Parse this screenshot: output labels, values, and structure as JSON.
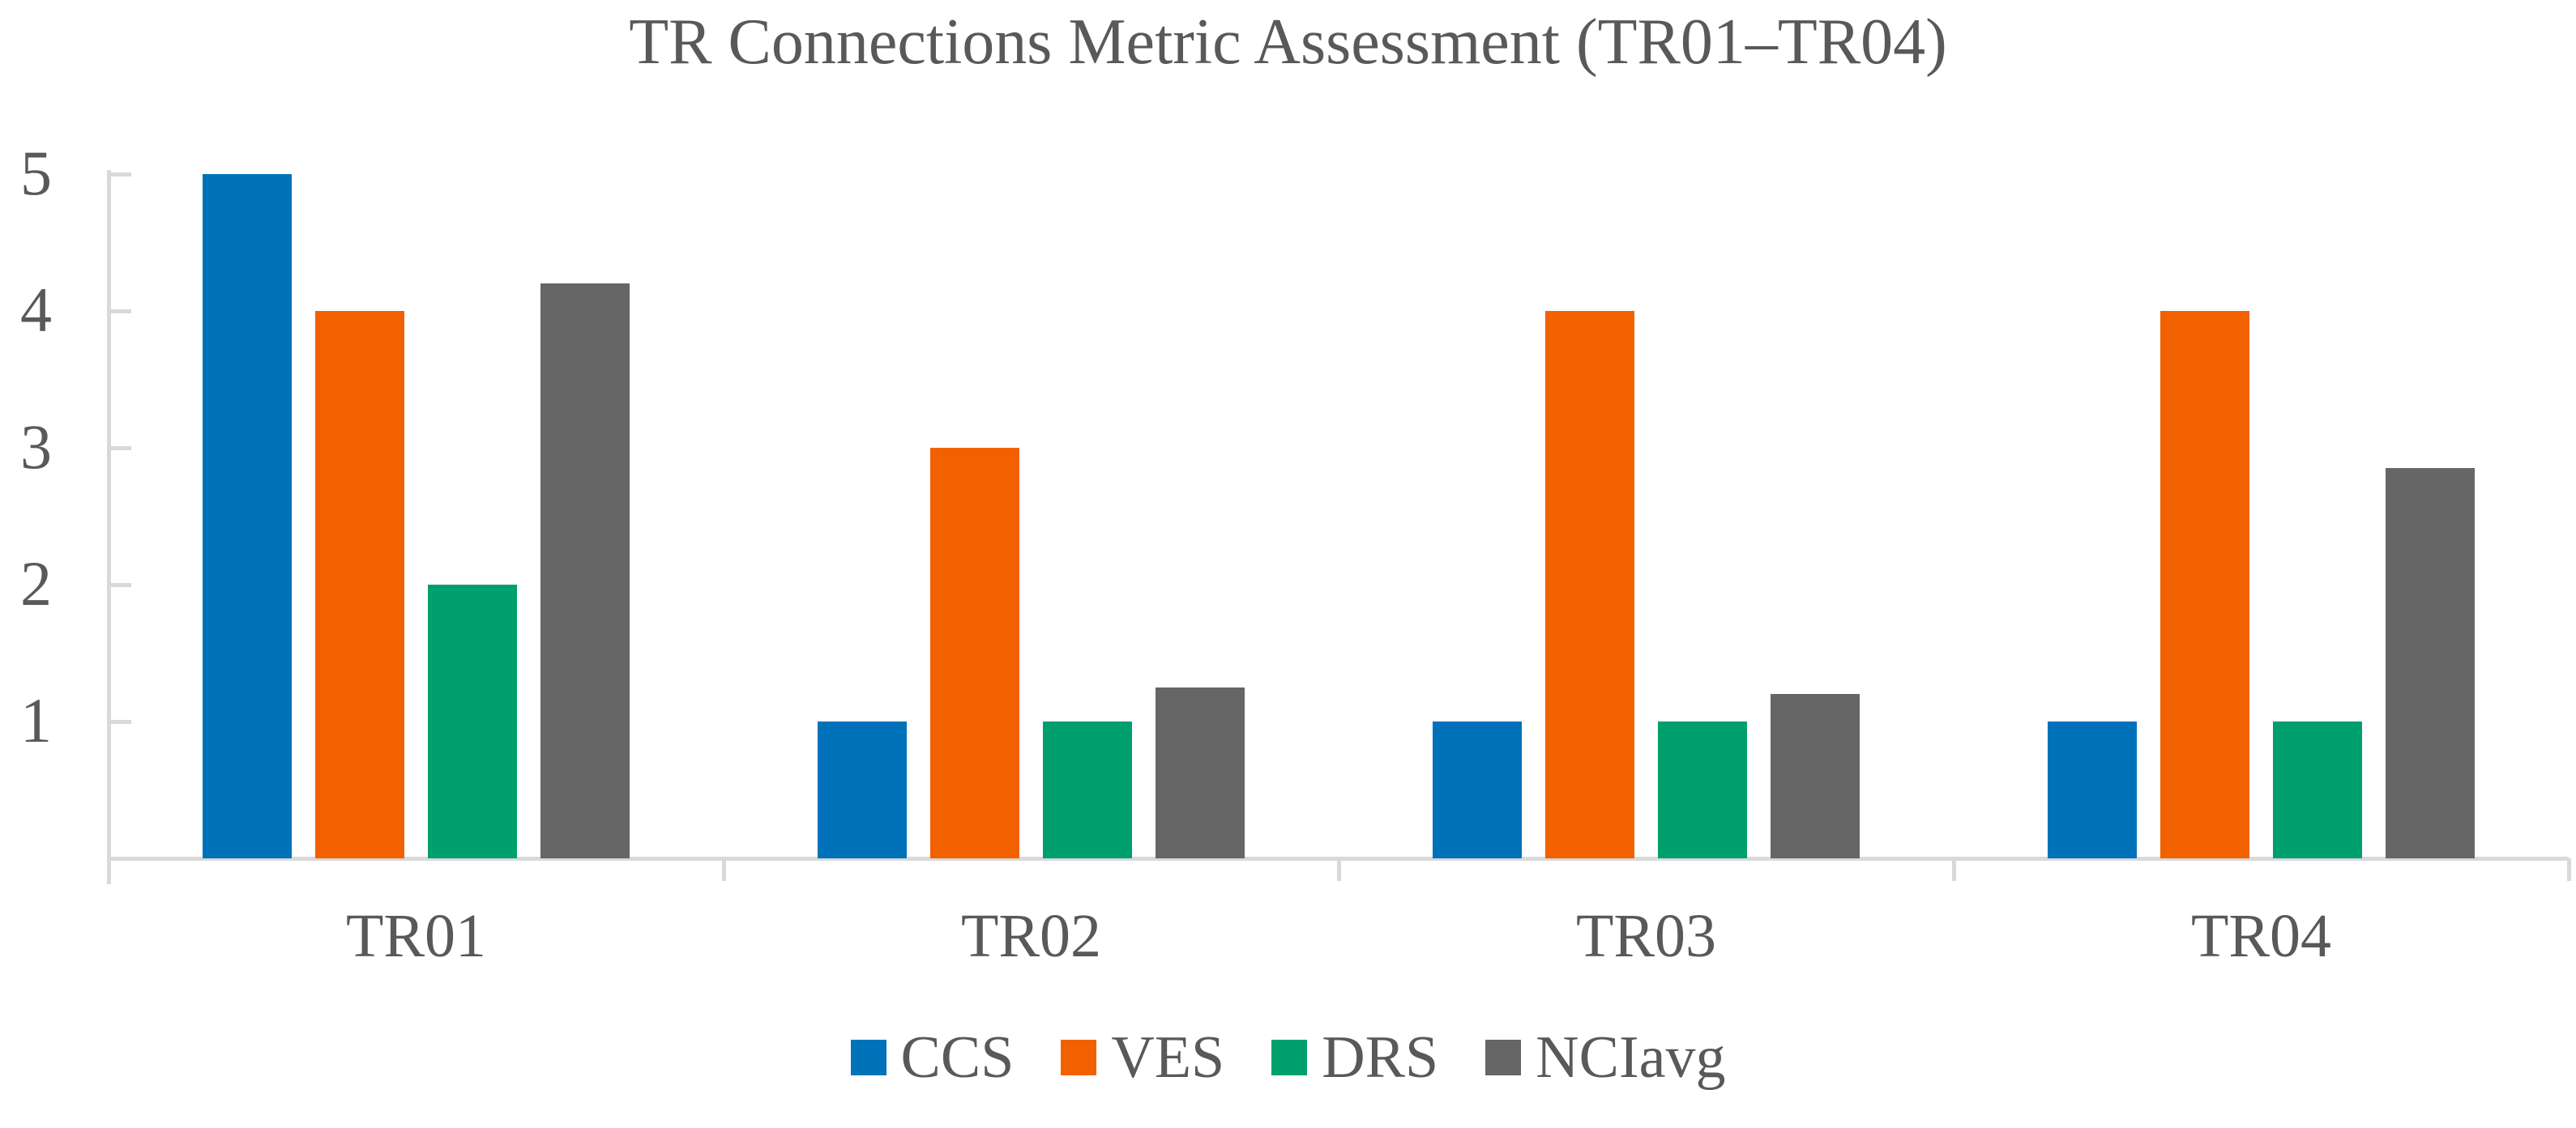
{
  "chart_data": {
    "type": "bar",
    "title": "TR Connections Metric Assessment (TR01–TR04)",
    "categories": [
      "TR01",
      "TR02",
      "TR03",
      "TR04"
    ],
    "series": [
      {
        "name": "CCS",
        "color": "#0072B9",
        "values": [
          5,
          1,
          1,
          1
        ]
      },
      {
        "name": "VES",
        "color": "#F26100",
        "values": [
          4,
          3,
          4,
          4
        ]
      },
      {
        "name": "DRS",
        "color": "#00A06E",
        "values": [
          2,
          1,
          1,
          1
        ]
      },
      {
        "name": "NCIavg",
        "color": "#666666",
        "values": [
          4.2,
          1.25,
          1.2,
          2.85
        ]
      }
    ],
    "ylim": [
      0,
      5
    ],
    "yticks": [
      1,
      2,
      3,
      4,
      5
    ],
    "xlabel": "",
    "ylabel": "",
    "grid": false,
    "legend_position": "bottom",
    "axis_color": "#D9D9D9",
    "text_color": "#595959"
  }
}
